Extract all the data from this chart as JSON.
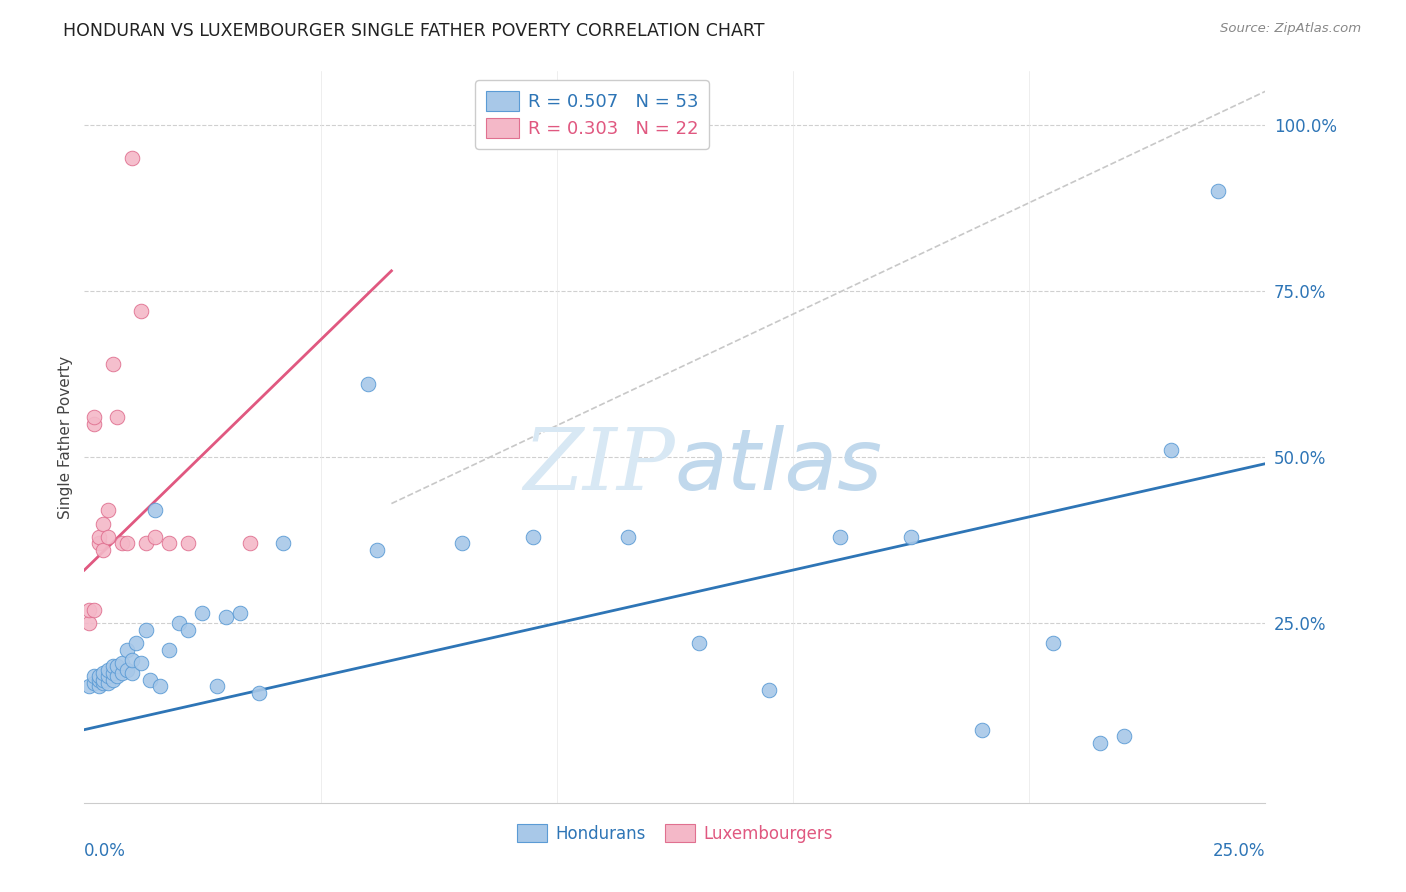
{
  "title": "HONDURAN VS LUXEMBOURGER SINGLE FATHER POVERTY CORRELATION CHART",
  "source": "Source: ZipAtlas.com",
  "ylabel": "Single Father Poverty",
  "legend_blue_r": "R = 0.507",
  "legend_blue_n": "N = 53",
  "legend_pink_r": "R = 0.303",
  "legend_pink_n": "N = 22",
  "blue_scatter_color": "#A8C8E8",
  "blue_edge_color": "#5B9BD5",
  "pink_scatter_color": "#F4B8C8",
  "pink_edge_color": "#E07090",
  "blue_line_color": "#2E75B6",
  "pink_line_color": "#E05880",
  "diag_color": "#C8C8C8",
  "watermark_color": "#D8E8F4",
  "xlim": [
    0.0,
    0.25
  ],
  "ylim": [
    -0.02,
    1.08
  ],
  "blue_line": [
    0.0,
    0.09,
    0.25,
    0.49
  ],
  "pink_line": [
    0.0,
    0.33,
    0.065,
    0.78
  ],
  "diag_line": [
    0.065,
    0.43,
    0.25,
    1.05
  ],
  "blue_x": [
    0.001,
    0.002,
    0.002,
    0.003,
    0.003,
    0.003,
    0.004,
    0.004,
    0.004,
    0.005,
    0.005,
    0.005,
    0.006,
    0.006,
    0.006,
    0.007,
    0.007,
    0.008,
    0.008,
    0.009,
    0.009,
    0.01,
    0.01,
    0.011,
    0.012,
    0.013,
    0.014,
    0.015,
    0.016,
    0.018,
    0.02,
    0.022,
    0.025,
    0.028,
    0.03,
    0.033,
    0.037,
    0.042,
    0.06,
    0.062,
    0.08,
    0.095,
    0.115,
    0.13,
    0.145,
    0.16,
    0.175,
    0.19,
    0.205,
    0.215,
    0.22,
    0.23,
    0.24
  ],
  "blue_y": [
    0.155,
    0.16,
    0.17,
    0.155,
    0.165,
    0.17,
    0.16,
    0.165,
    0.175,
    0.16,
    0.17,
    0.18,
    0.165,
    0.175,
    0.185,
    0.17,
    0.185,
    0.175,
    0.19,
    0.18,
    0.21,
    0.175,
    0.195,
    0.22,
    0.19,
    0.24,
    0.165,
    0.42,
    0.155,
    0.21,
    0.25,
    0.24,
    0.265,
    0.155,
    0.26,
    0.265,
    0.145,
    0.37,
    0.61,
    0.36,
    0.37,
    0.38,
    0.38,
    0.22,
    0.15,
    0.38,
    0.38,
    0.09,
    0.22,
    0.07,
    0.08,
    0.51,
    0.9
  ],
  "pink_x": [
    0.001,
    0.001,
    0.002,
    0.002,
    0.002,
    0.003,
    0.003,
    0.004,
    0.004,
    0.005,
    0.005,
    0.006,
    0.007,
    0.008,
    0.009,
    0.01,
    0.012,
    0.013,
    0.015,
    0.018,
    0.022,
    0.035
  ],
  "pink_y": [
    0.25,
    0.27,
    0.27,
    0.55,
    0.56,
    0.37,
    0.38,
    0.36,
    0.4,
    0.38,
    0.42,
    0.64,
    0.56,
    0.37,
    0.37,
    0.95,
    0.72,
    0.37,
    0.38,
    0.37,
    0.37,
    0.37
  ]
}
